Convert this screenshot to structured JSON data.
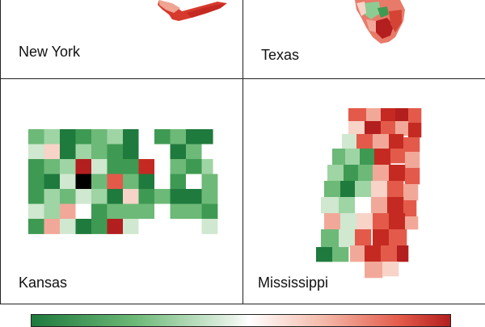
{
  "panels": [
    {
      "label": "New York"
    },
    {
      "label": "Texas"
    },
    {
      "label": "Kansas"
    },
    {
      "label": "Mississippi"
    }
  ],
  "colors": {
    "dark_green": "#1f7a3d",
    "mid_green": "#6db978",
    "light_green": "#cfe8cf",
    "white": "#ffffff",
    "light_red": "#f4b8a8",
    "mid_red": "#e35a4a",
    "dark_red": "#b31e1e"
  }
}
